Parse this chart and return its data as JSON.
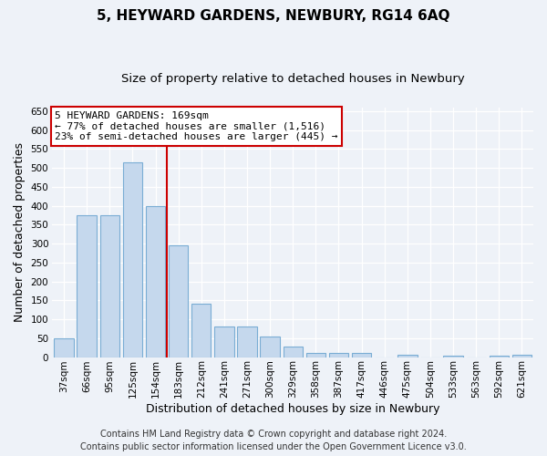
{
  "title": "5, HEYWARD GARDENS, NEWBURY, RG14 6AQ",
  "subtitle": "Size of property relative to detached houses in Newbury",
  "xlabel": "Distribution of detached houses by size in Newbury",
  "ylabel": "Number of detached properties",
  "categories": [
    "37sqm",
    "66sqm",
    "95sqm",
    "125sqm",
    "154sqm",
    "183sqm",
    "212sqm",
    "241sqm",
    "271sqm",
    "300sqm",
    "329sqm",
    "358sqm",
    "387sqm",
    "417sqm",
    "446sqm",
    "475sqm",
    "504sqm",
    "533sqm",
    "563sqm",
    "592sqm",
    "621sqm"
  ],
  "values": [
    50,
    375,
    375,
    515,
    400,
    295,
    140,
    82,
    82,
    55,
    28,
    10,
    10,
    12,
    0,
    5,
    0,
    3,
    0,
    3,
    5
  ],
  "bar_color": "#c5d8ed",
  "bar_edge_color": "#7aadd4",
  "vline_x_index": 4.5,
  "vline_color": "#cc0000",
  "annotation_box_text": "5 HEYWARD GARDENS: 169sqm\n← 77% of detached houses are smaller (1,516)\n23% of semi-detached houses are larger (445) →",
  "annotation_box_color": "#cc0000",
  "ylim": [
    0,
    660
  ],
  "yticks": [
    0,
    50,
    100,
    150,
    200,
    250,
    300,
    350,
    400,
    450,
    500,
    550,
    600,
    650
  ],
  "bg_color": "#eef2f8",
  "grid_color": "#ffffff",
  "footer_line1": "Contains HM Land Registry data © Crown copyright and database right 2024.",
  "footer_line2": "Contains public sector information licensed under the Open Government Licence v3.0.",
  "title_fontsize": 11,
  "subtitle_fontsize": 9.5,
  "axis_label_fontsize": 9,
  "tick_fontsize": 7.5,
  "annotation_fontsize": 8,
  "footer_fontsize": 7
}
